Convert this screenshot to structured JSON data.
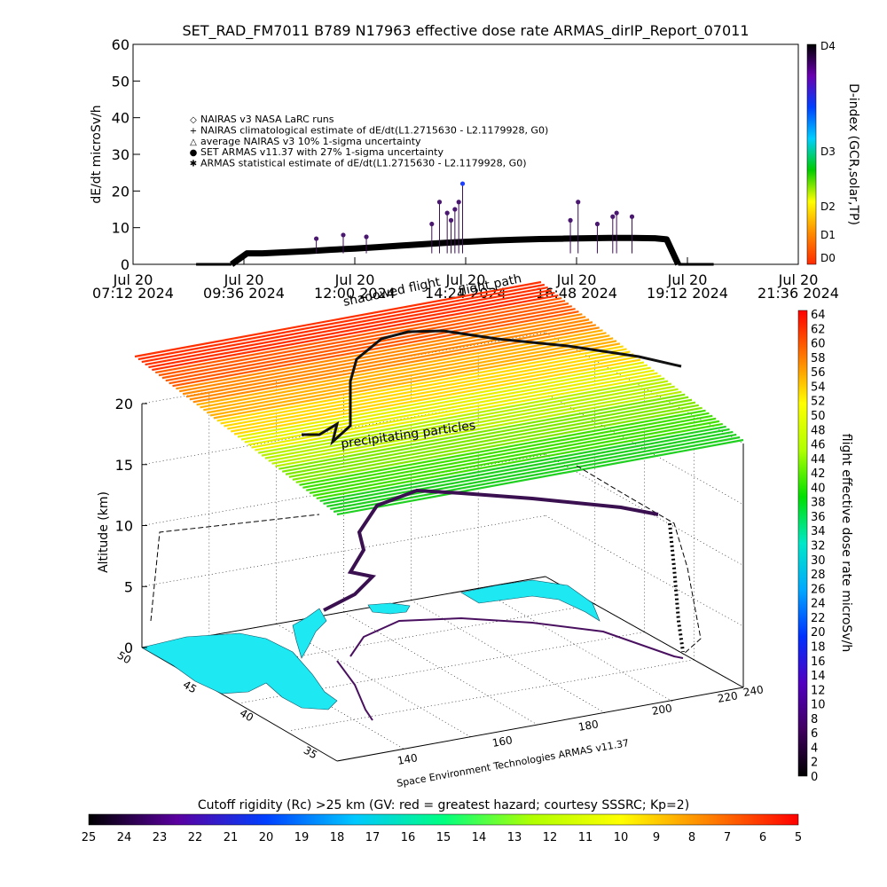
{
  "chart_data": [
    {
      "type": "scatter",
      "title": "SET_RAD_FM7011   B789 N17963 effective dose rate ARMAS_dirIP_Report_07011",
      "ylabel": "dE/dt microSv/h",
      "ylim": [
        0,
        60
      ],
      "yticks": [
        "0",
        "10",
        "20",
        "30",
        "40",
        "50",
        "60"
      ],
      "xticks": [
        {
          "l1": "Jul 20",
          "l2": "07:12 2024"
        },
        {
          "l1": "Jul 20",
          "l2": "09:36 2024"
        },
        {
          "l1": "Jul 20",
          "l2": "12:00 2024"
        },
        {
          "l1": "Jul 20",
          "l2": "14:24 2024"
        },
        {
          "l1": "Jul 20",
          "l2": "16:48 2024"
        },
        {
          "l1": "Jul 20",
          "l2": "19:12 2024"
        },
        {
          "l1": "Jul 20",
          "l2": "21:36 2024"
        }
      ],
      "legend": [
        {
          "symbol": "◇",
          "text": "NAIRAS v3 NASA LaRC runs"
        },
        {
          "symbol": "+",
          "text": "NAIRAS climatological estimate of dE/dt(L1.2715630 - L2.1179928, G0)"
        },
        {
          "symbol": "△",
          "text": "average NAIRAS v3 10% 1-sigma uncertainty"
        },
        {
          "symbol": "●",
          "text": "SET ARMAS v11.37 with 27% 1-sigma uncertainty"
        },
        {
          "symbol": "✱",
          "text": "ARMAS statistical estimate of dE/dt(L1.2715630 - L2.1179928, G0)"
        }
      ],
      "legend_placement": "upper-left",
      "series": [
        {
          "role": "baseline",
          "x": [
            "09:20",
            "09:40",
            "10:00",
            "10:30",
            "11:00",
            "11:30",
            "12:00",
            "12:30",
            "13:00",
            "13:30",
            "14:00",
            "14:30",
            "15:00",
            "15:30",
            "16:00",
            "16:30",
            "17:00",
            "17:30",
            "18:00",
            "18:30",
            "18:45",
            "19:00"
          ],
          "values": [
            0,
            3,
            3,
            3.3,
            3.6,
            4,
            4.3,
            4.7,
            5.1,
            5.5,
            5.9,
            6.2,
            6.5,
            6.7,
            6.9,
            7,
            7.1,
            7.2,
            7.2,
            7.1,
            6.8,
            0
          ]
        },
        {
          "role": "armas",
          "x": [
            "11:10",
            "11:45",
            "12:15",
            "13:40",
            "13:50",
            "14:00",
            "14:05",
            "14:10",
            "14:15",
            "14:20",
            "16:40",
            "16:50",
            "17:15",
            "17:35",
            "17:40",
            "18:00"
          ],
          "values": [
            7,
            8,
            7.5,
            11,
            17,
            14,
            12,
            15,
            17,
            22,
            12,
            17,
            11,
            13,
            14,
            13
          ]
        }
      ],
      "colorbar": {
        "label": "D-index (GCR,solar,TP)",
        "ticks": [
          "D4",
          "D3",
          "D2",
          "D1",
          "D0"
        ],
        "colors": [
          "#ff2a00",
          "#ff8c00",
          "#ffff00",
          "#00cc00",
          "#00cfff",
          "#0040ff",
          "#6a00b0",
          "#000000"
        ]
      }
    },
    {
      "type": "scatter",
      "title": "",
      "zlabel": "Altitude (km)",
      "zlim": [
        0,
        20
      ],
      "zticks": [
        "0",
        "5",
        "10",
        "15",
        "20"
      ],
      "lon_ticks": [
        "140",
        "160",
        "180",
        "200",
        "220",
        "240"
      ],
      "lat_ticks": [
        "50",
        "45",
        "40",
        "35"
      ],
      "annotations": {
        "flight_path": "flight path",
        "shadow": "shadowed flight",
        "particles": "precipitating particles"
      },
      "credit": "Space Environment Technologies ARMAS v11.37",
      "colorbar": {
        "label": "flight effective dose rate microSv/h",
        "ticks": [
          "64",
          "62",
          "60",
          "58",
          "56",
          "54",
          "52",
          "50",
          "48",
          "46",
          "44",
          "42",
          "40",
          "38",
          "36",
          "34",
          "32",
          "30",
          "28",
          "26",
          "24",
          "22",
          "20",
          "18",
          "16",
          "14",
          "12",
          "10",
          "8",
          "6",
          "4",
          "2",
          "0"
        ],
        "colors": [
          "#ff0000",
          "#ff7a00",
          "#ffff00",
          "#b0ff00",
          "#00e000",
          "#00e8c8",
          "#00a8ff",
          "#0030ff",
          "#5000c0",
          "#400060",
          "#000000"
        ]
      },
      "bottom_colorbar": {
        "label": "Cutoff rigidity (Rc) >25 km (GV: red = greatest hazard; courtesy SSSRC; Kp=2)",
        "ticks": [
          "25",
          "24",
          "23",
          "22",
          "21",
          "20",
          "19",
          "18",
          "17",
          "16",
          "15",
          "14",
          "13",
          "12",
          "11",
          "10",
          "9",
          "8",
          "7",
          "6",
          "5"
        ],
        "colors": [
          "#000000",
          "#5a00a0",
          "#0040ff",
          "#00c8ff",
          "#00ff80",
          "#b0ff00",
          "#ffff00",
          "#ff8000",
          "#ff0000"
        ]
      }
    }
  ]
}
